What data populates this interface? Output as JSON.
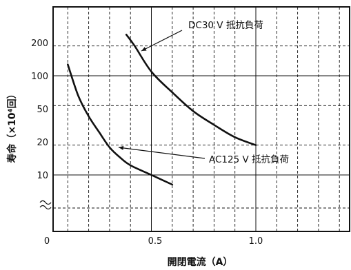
{
  "chart_data": {
    "type": "line",
    "title": "",
    "xlabel": "開閉電流（A）",
    "ylabel": "寿命（×10⁴回）",
    "x_ticks": [
      "0",
      "0.5",
      "1.0"
    ],
    "y_ticks": [
      "10",
      "20",
      "50",
      "100",
      "200"
    ],
    "xlim": [
      0,
      1.5
    ],
    "ylim": [
      1,
      500
    ],
    "y_scale": "log",
    "y_axis_break": true,
    "grid": "dashed",
    "series": [
      {
        "name": "DC30 V  抵抗負荷",
        "points": [
          [
            0.38,
            260
          ],
          [
            0.42,
            200
          ],
          [
            0.5,
            110
          ],
          [
            0.6,
            68
          ],
          [
            0.7,
            44
          ],
          [
            0.8,
            32
          ],
          [
            0.9,
            24
          ],
          [
            1.0,
            20
          ]
        ]
      },
      {
        "name": "AC125 V  抵抗負荷",
        "points": [
          [
            0.1,
            130
          ],
          [
            0.15,
            63
          ],
          [
            0.2,
            39
          ],
          [
            0.25,
            27
          ],
          [
            0.3,
            19
          ],
          [
            0.35,
            15
          ],
          [
            0.4,
            12.5
          ],
          [
            0.5,
            10
          ],
          [
            0.6,
            8
          ]
        ]
      }
    ],
    "annotations": [
      {
        "text": "DC30 V  抵抗負荷",
        "series": 0,
        "arrow_to": [
          0.41,
          200
        ]
      },
      {
        "text": "AC125 V  抵抗負荷",
        "series": 1,
        "arrow_to": [
          0.32,
          19
        ]
      }
    ]
  }
}
